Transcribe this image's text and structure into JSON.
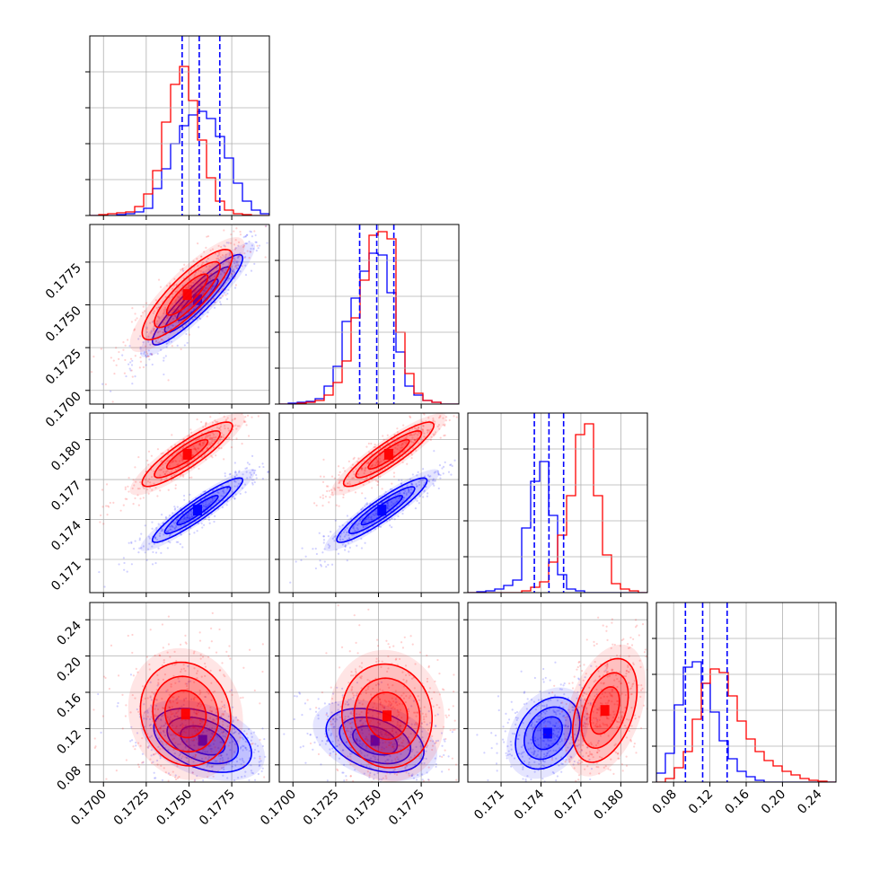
{
  "chart_data": {
    "type": "corner",
    "title": "",
    "colors": {
      "series_a": "#0000ff",
      "series_b": "#ff0000"
    },
    "quantile_lines": {
      "color": "#0000ff",
      "style": "dashed",
      "param0": [
        0.1746,
        0.1756,
        0.1768
      ],
      "param1": [
        0.1739,
        0.1749,
        0.1759
      ],
      "param2": [
        0.1735,
        0.1746,
        0.1757
      ],
      "param3": [
        0.093,
        0.112,
        0.139
      ]
    },
    "params": [
      {
        "range": [
          0.1692,
          0.1797
        ],
        "ticks": [
          0.17,
          0.1725,
          0.175,
          0.1775
        ],
        "tick_labels": [
          "0.1700",
          "0.1725",
          "0.1750",
          "0.1775"
        ]
      },
      {
        "range": [
          0.1692,
          0.1797
        ],
        "ticks": [
          0.17,
          0.1725,
          0.175,
          0.1775
        ],
        "tick_labels": [
          "0.1700",
          "0.1725",
          "0.1750",
          "0.1775"
        ]
      },
      {
        "range": [
          0.1685,
          0.182
        ],
        "ticks": [
          0.171,
          0.174,
          0.177,
          0.18
        ],
        "tick_labels": [
          "0.171",
          "0.174",
          "0.177",
          "0.180"
        ]
      },
      {
        "range": [
          0.061,
          0.259
        ],
        "ticks": [
          0.08,
          0.12,
          0.16,
          0.2,
          0.24
        ],
        "tick_labels": [
          "0.08",
          "0.12",
          "0.16",
          "0.20",
          "0.24"
        ]
      }
    ],
    "histograms": [
      {
        "param": 0,
        "edges": [
          0.1692,
          0.1797
        ],
        "series": [
          {
            "color": "blue",
            "values": [
              0,
              0,
              0,
              0.005,
              0.01,
              0.02,
              0.04,
              0.15,
              0.26,
              0.4,
              0.5,
              0.56,
              0.58,
              0.54,
              0.44,
              0.32,
              0.18,
              0.08,
              0.03,
              0.01
            ]
          },
          {
            "color": "red",
            "values": [
              0,
              0.005,
              0.01,
              0.015,
              0.02,
              0.05,
              0.12,
              0.25,
              0.52,
              0.73,
              0.83,
              0.64,
              0.42,
              0.21,
              0.08,
              0.03,
              0.01,
              0.005,
              0,
              0
            ]
          }
        ]
      },
      {
        "param": 1,
        "edges": [
          0.1692,
          0.1797
        ],
        "series": [
          {
            "color": "blue",
            "values": [
              0,
              0.005,
              0.01,
              0.015,
              0.03,
              0.1,
              0.21,
              0.46,
              0.59,
              0.74,
              0.84,
              0.83,
              0.62,
              0.29,
              0.1,
              0.05,
              0.02,
              0.01,
              0,
              0
            ]
          },
          {
            "color": "red",
            "values": [
              0,
              0,
              0.005,
              0.01,
              0.02,
              0.05,
              0.12,
              0.24,
              0.48,
              0.69,
              0.94,
              0.96,
              0.92,
              0.4,
              0.17,
              0.06,
              0.02,
              0.01,
              0,
              0
            ]
          }
        ]
      },
      {
        "param": 2,
        "edges": [
          0.1685,
          0.182
        ],
        "series": [
          {
            "color": "blue",
            "values": [
              0,
              0.005,
              0.01,
              0.02,
              0.04,
              0.07,
              0.36,
              0.62,
              0.73,
              0.43,
              0.1,
              0.02,
              0.01,
              0,
              0,
              0,
              0,
              0,
              0,
              0
            ]
          },
          {
            "color": "red",
            "values": [
              0,
              0,
              0,
              0,
              0,
              0,
              0.01,
              0.03,
              0.06,
              0.17,
              0.32,
              0.54,
              0.88,
              0.94,
              0.54,
              0.21,
              0.05,
              0.02,
              0.01,
              0
            ]
          }
        ]
      },
      {
        "param": 3,
        "edges": [
          0.061,
          0.259
        ],
        "series": [
          {
            "color": "blue",
            "values": [
              0.05,
              0.16,
              0.43,
              0.64,
              0.67,
              0.55,
              0.39,
              0.23,
              0.13,
              0.06,
              0.03,
              0.01,
              0,
              0,
              0,
              0,
              0,
              0,
              0,
              0
            ]
          },
          {
            "color": "red",
            "values": [
              0,
              0.02,
              0.08,
              0.17,
              0.35,
              0.55,
              0.63,
              0.61,
              0.48,
              0.34,
              0.24,
              0.17,
              0.12,
              0.09,
              0.06,
              0.04,
              0.02,
              0.01,
              0.005,
              0
            ]
          }
        ]
      }
    ],
    "pairs": [
      {
        "x": 0,
        "y": 1,
        "series": [
          {
            "color": "blue",
            "mean": [
              0.1755,
              0.1753
            ],
            "sd": [
              0.0012,
              0.0012
            ],
            "rho": 0.92
          },
          {
            "color": "red",
            "mean": [
              0.1749,
              0.1756
            ],
            "sd": [
              0.0012,
              0.0012
            ],
            "rho": 0.85
          }
        ]
      },
      {
        "x": 0,
        "y": 2,
        "series": [
          {
            "color": "blue",
            "mean": [
              0.1755,
              0.1747
            ],
            "sd": [
              0.0012,
              0.0011
            ],
            "rho": 0.93
          },
          {
            "color": "red",
            "mean": [
              0.1749,
              0.1789
            ],
            "sd": [
              0.0012,
              0.0011
            ],
            "rho": 0.88
          }
        ]
      },
      {
        "x": 1,
        "y": 2,
        "series": [
          {
            "color": "blue",
            "mean": [
              0.1752,
              0.1747
            ],
            "sd": [
              0.0012,
              0.0011
            ],
            "rho": 0.92
          },
          {
            "color": "red",
            "mean": [
              0.1756,
              0.1789
            ],
            "sd": [
              0.0012,
              0.0011
            ],
            "rho": 0.9
          }
        ]
      },
      {
        "x": 0,
        "y": 3,
        "series": [
          {
            "color": "blue",
            "mean": [
              0.1758,
              0.107
            ],
            "sd": [
              0.0013,
              0.016
            ],
            "rho": -0.4
          },
          {
            "color": "red",
            "mean": [
              0.1748,
              0.136
            ],
            "sd": [
              0.0012,
              0.026
            ],
            "rho": -0.1
          }
        ]
      },
      {
        "x": 1,
        "y": 3,
        "series": [
          {
            "color": "blue",
            "mean": [
              0.1748,
              0.107
            ],
            "sd": [
              0.0013,
              0.016
            ],
            "rho": -0.35
          },
          {
            "color": "red",
            "mean": [
              0.1755,
              0.134
            ],
            "sd": [
              0.0012,
              0.026
            ],
            "rho": -0.05
          }
        ]
      },
      {
        "x": 2,
        "y": 3,
        "series": [
          {
            "color": "blue",
            "mean": [
              0.1745,
              0.115
            ],
            "sd": [
              0.0011,
              0.018
            ],
            "rho": 0.3
          },
          {
            "color": "red",
            "mean": [
              0.1788,
              0.14
            ],
            "sd": [
              0.0011,
              0.026
            ],
            "rho": 0.4
          }
        ]
      }
    ]
  }
}
